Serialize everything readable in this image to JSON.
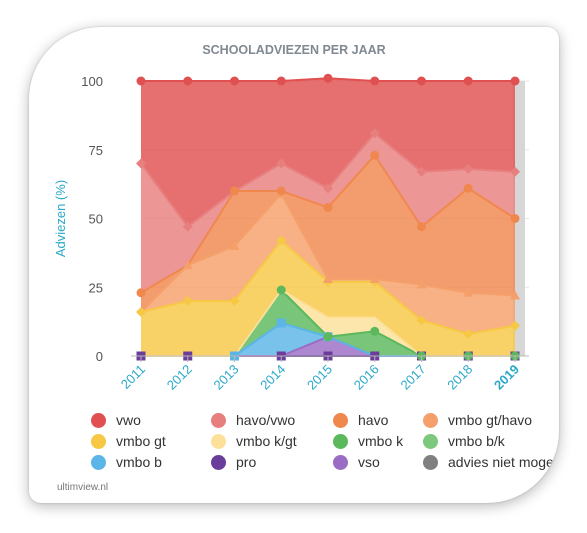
{
  "chart_data": {
    "type": "area",
    "title": "SCHOOLADVIEZEN PER JAAR",
    "ylabel": "Adviezen (%)",
    "xlabel": "",
    "ylim": [
      0,
      100
    ],
    "yticks": [
      "0",
      "25",
      "50",
      "75",
      "100"
    ],
    "categories": [
      "2011",
      "2012",
      "2013",
      "2014",
      "2015",
      "2016",
      "2017",
      "2018",
      "2019"
    ],
    "highlight_category": "2019",
    "stacked": true,
    "legend_position": "bottom",
    "grid": true,
    "series": [
      {
        "name": "pro",
        "color": "#6a3d9a",
        "values": [
          0,
          0,
          0,
          0,
          0,
          0,
          0,
          0,
          0
        ],
        "marker": "square"
      },
      {
        "name": "vso",
        "color": "#9b6cc4",
        "values": [
          0,
          0,
          0,
          0,
          7,
          0,
          0,
          0,
          0
        ],
        "marker": "diamond"
      },
      {
        "name": "vmbo b",
        "color": "#5bb5e6",
        "values": [
          0,
          0,
          0,
          12,
          0,
          0,
          0,
          0,
          0
        ],
        "marker": "square"
      },
      {
        "name": "vmbo b/k",
        "color": "#7cc87c",
        "values": [
          0,
          0,
          0,
          0,
          0,
          0,
          0,
          0,
          0
        ],
        "marker": "circle"
      },
      {
        "name": "vmbo k",
        "color": "#5cb85c",
        "values": [
          0,
          0,
          0,
          12,
          0,
          9,
          0,
          0,
          0
        ],
        "marker": "circle"
      },
      {
        "name": "vmbo k/gt",
        "color": "#fde09a",
        "values": [
          0,
          0,
          0,
          0,
          7,
          5,
          0,
          0,
          0
        ],
        "marker": "none"
      },
      {
        "name": "vmbo gt",
        "color": "#f6c844",
        "values": [
          16,
          20,
          20,
          18,
          13,
          13,
          13,
          8,
          11
        ],
        "marker": "diamond"
      },
      {
        "name": "vmbo gt/havo",
        "color": "#f5a06a",
        "values": [
          0,
          13,
          20,
          17,
          1,
          1,
          13,
          15,
          11
        ],
        "marker": "triangle"
      },
      {
        "name": "havo",
        "color": "#f0884e",
        "values": [
          7,
          0,
          20,
          1,
          26,
          45,
          21,
          38,
          28
        ],
        "marker": "circle"
      },
      {
        "name": "havo/vwo",
        "color": "#e87f7f",
        "values": [
          47,
          14,
          0,
          10,
          7,
          8,
          20,
          7,
          17
        ],
        "marker": "diamond"
      },
      {
        "name": "vwo",
        "color": "#e05050",
        "values": [
          30,
          53,
          40,
          30,
          40,
          19,
          33,
          32,
          33
        ],
        "marker": "circle"
      },
      {
        "name": "advies niet mogelijk",
        "color": "#808080",
        "values": [
          0,
          0,
          0,
          0,
          0,
          0,
          0,
          0,
          0
        ],
        "marker": "none"
      }
    ],
    "legend_order": [
      "vwo",
      "havo/vwo",
      "havo",
      "vmbo gt/havo",
      "vmbo gt",
      "vmbo k/gt",
      "vmbo k",
      "vmbo b/k",
      "vmbo b",
      "pro",
      "vso",
      "advies niet mogelijk"
    ]
  },
  "credit": "ultimview.nl"
}
